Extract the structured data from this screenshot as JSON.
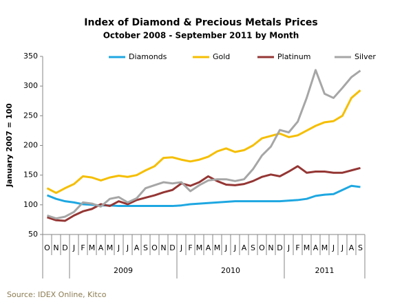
{
  "chart_data": {
    "type": "line",
    "title": "Index of Diamond & Precious Metals Prices",
    "subtitle": "October 2008 - September 2011 by Month",
    "y_label": "January 2007 = 100",
    "source": "Source:  IDEX Online, Kitco",
    "categories": [
      "O",
      "N",
      "D",
      "J",
      "F",
      "M",
      "A",
      "M",
      "J",
      "J",
      "A",
      "S",
      "O",
      "N",
      "D",
      "J",
      "F",
      "M",
      "A",
      "M",
      "J",
      "J",
      "A",
      "S",
      "O",
      "N",
      "D",
      "J",
      "F",
      "M",
      "A",
      "M",
      "J",
      "J",
      "A",
      "S"
    ],
    "years": [
      "2009",
      "2010",
      "2011"
    ],
    "ylim": [
      50,
      350
    ],
    "yticks": [
      50,
      100,
      150,
      200,
      250,
      300,
      350
    ],
    "grid": false,
    "legend": "top",
    "series": [
      {
        "name": "Diamonds",
        "color": "#1ea7e1",
        "values": [
          116,
          110,
          106,
          104,
          101,
          100,
          99,
          99,
          98,
          98,
          98,
          98,
          98,
          98,
          98,
          99,
          101,
          102,
          103,
          104,
          105,
          106,
          106,
          106,
          106,
          106,
          106,
          107,
          108,
          110,
          115,
          117,
          118,
          125,
          132,
          130
        ]
      },
      {
        "name": "Gold",
        "color": "#f5be00",
        "values": [
          128,
          120,
          128,
          135,
          148,
          146,
          141,
          146,
          149,
          147,
          150,
          158,
          165,
          179,
          180,
          176,
          173,
          176,
          181,
          190,
          195,
          189,
          192,
          200,
          212,
          216,
          220,
          214,
          217,
          225,
          233,
          239,
          241,
          250,
          280,
          293
        ]
      },
      {
        "name": "Platinum",
        "color": "#943634",
        "values": [
          79,
          74,
          73,
          82,
          89,
          93,
          101,
          98,
          106,
          101,
          108,
          112,
          116,
          121,
          125,
          136,
          132,
          138,
          148,
          140,
          134,
          133,
          135,
          140,
          147,
          151,
          148,
          156,
          165,
          154,
          156,
          156,
          154,
          154,
          158,
          162
        ]
      },
      {
        "name": "Silver",
        "color": "#a6a6a6",
        "values": [
          82,
          77,
          80,
          88,
          104,
          102,
          97,
          110,
          113,
          104,
          111,
          128,
          133,
          138,
          136,
          138,
          123,
          133,
          141,
          143,
          143,
          140,
          143,
          160,
          183,
          198,
          226,
          222,
          240,
          280,
          327,
          287,
          280,
          297,
          315,
          326
        ]
      }
    ]
  }
}
